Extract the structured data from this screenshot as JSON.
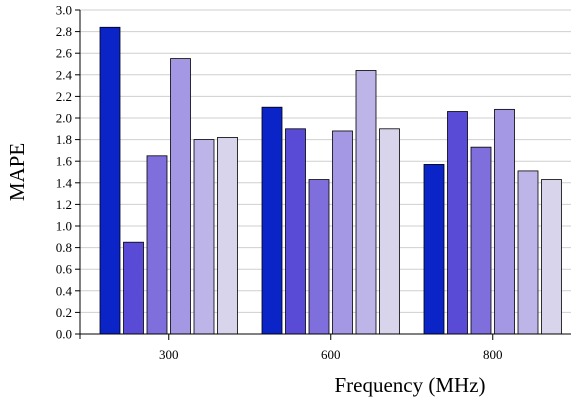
{
  "chart_data": {
    "type": "bar",
    "title": "",
    "xlabel": "Frequency (MHz)",
    "ylabel": "MAPE",
    "categories": [
      "300",
      "600",
      "800"
    ],
    "ylim": [
      0,
      3.0
    ],
    "yticks": [
      "0.0",
      "0.2",
      "0.4",
      "0.6",
      "0.8",
      "1.0",
      "1.2",
      "1.4",
      "1.6",
      "1.8",
      "2.0",
      "2.2",
      "2.4",
      "2.6",
      "2.8",
      "3.0"
    ],
    "grid": true,
    "legend": "none",
    "series": [
      {
        "color": "#0a24c8",
        "values": [
          2.84,
          2.1,
          1.57
        ]
      },
      {
        "color": "#5a4bd6",
        "values": [
          0.85,
          1.9,
          2.06
        ]
      },
      {
        "color": "#7e6fdc",
        "values": [
          1.65,
          1.43,
          1.73
        ]
      },
      {
        "color": "#a497e4",
        "values": [
          2.55,
          1.88,
          2.08
        ]
      },
      {
        "color": "#bdb4e8",
        "values": [
          1.8,
          2.44,
          1.51
        ]
      },
      {
        "color": "#d8d4ec",
        "values": [
          1.82,
          1.9,
          1.43
        ]
      }
    ]
  }
}
